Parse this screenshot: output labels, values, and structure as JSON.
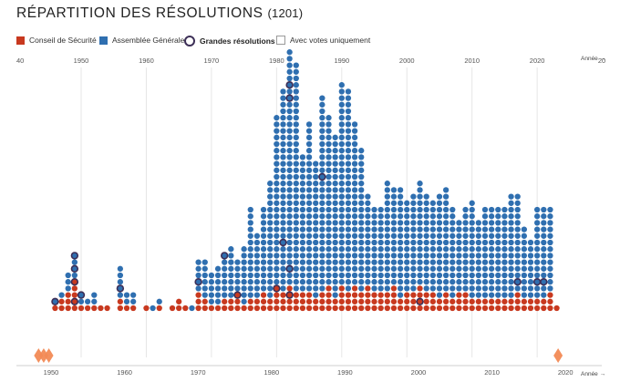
{
  "header": {
    "title": "RÉPARTITION DES RÉSOLUTIONS",
    "count": "(1201)"
  },
  "legend": {
    "security_council": "Conseil de Sécurité",
    "general_assembly": "Assemblée Générale",
    "major": "Grandes résolutions",
    "votes_only": "Avec votes uniquement"
  },
  "colors": {
    "security_council": "#c8391f",
    "general_assembly": "#2f6fb0",
    "major": "#3d2f57",
    "marker": "#f28a55"
  },
  "chart_data": {
    "type": "scatter",
    "title": "RÉPARTITION DES RÉSOLUTIONS (1201)",
    "xlabel": "Année",
    "xlabel_top": "Année",
    "xlim": [
      1940,
      2025
    ],
    "top_ticks": [
      "40",
      "1950",
      "1960",
      "1970",
      "1980",
      "1990",
      "2000",
      "2010",
      "2020",
      "20"
    ],
    "bottom_ticks": [
      "1950",
      "1960",
      "1970",
      "1980",
      "1990",
      "2000",
      "2010",
      "2020"
    ],
    "arrow": "→",
    "series": [
      {
        "name": "Conseil de Sécurité",
        "years": [
          1946,
          1947,
          1948,
          1949,
          1950,
          1951,
          1952,
          1953,
          1954,
          1955,
          1956,
          1957,
          1958,
          1959,
          1960,
          1961,
          1962,
          1963,
          1964,
          1965,
          1966,
          1967,
          1968,
          1969,
          1970,
          1971,
          1972,
          1973,
          1974,
          1975,
          1976,
          1977,
          1978,
          1979,
          1980,
          1981,
          1982,
          1983,
          1984,
          1985,
          1986,
          1987,
          1988,
          1989,
          1990,
          1991,
          1992,
          1993,
          1994,
          1995,
          1996,
          1997,
          1998,
          1999,
          2000,
          2001,
          2002,
          2003,
          2004,
          2005,
          2006,
          2007,
          2008,
          2009,
          2010,
          2011,
          2012,
          2013,
          2014,
          2015,
          2016,
          2017,
          2018,
          2019,
          2020,
          2021,
          2022,
          2023
        ],
        "values": [
          1,
          2,
          3,
          5,
          1,
          1,
          1,
          1,
          1,
          0,
          2,
          1,
          1,
          0,
          1,
          0,
          1,
          0,
          1,
          2,
          1,
          0,
          3,
          2,
          1,
          1,
          2,
          2,
          3,
          1,
          2,
          2,
          3,
          2,
          4,
          3,
          4,
          3,
          3,
          3,
          2,
          3,
          4,
          2,
          4,
          3,
          4,
          3,
          4,
          3,
          3,
          3,
          4,
          2,
          3,
          3,
          4,
          3,
          3,
          2,
          3,
          2,
          3,
          3,
          2,
          2,
          2,
          2,
          2,
          2,
          2,
          3,
          2,
          2,
          2,
          2,
          3,
          1
        ]
      },
      {
        "name": "Assemblée Générale",
        "years": [
          1946,
          1947,
          1948,
          1949,
          1950,
          1951,
          1952,
          1953,
          1954,
          1955,
          1956,
          1957,
          1958,
          1959,
          1960,
          1961,
          1962,
          1963,
          1964,
          1965,
          1966,
          1967,
          1968,
          1969,
          1970,
          1971,
          1972,
          1973,
          1974,
          1975,
          1976,
          1977,
          1978,
          1979,
          1980,
          1981,
          1982,
          1983,
          1984,
          1985,
          1986,
          1987,
          1988,
          1989,
          1990,
          1991,
          1992,
          1993,
          1994,
          1995,
          1996,
          1997,
          1998,
          1999,
          2000,
          2001,
          2002,
          2003,
          2004,
          2005,
          2006,
          2007,
          2008,
          2009,
          2010,
          2011,
          2012,
          2013,
          2014,
          2015,
          2016,
          2017,
          2018,
          2019,
          2020,
          2021,
          2022,
          2023
        ],
        "values": [
          0,
          1,
          3,
          3,
          1,
          1,
          2,
          0,
          0,
          0,
          5,
          2,
          2,
          0,
          0,
          1,
          1,
          0,
          0,
          0,
          0,
          1,
          5,
          6,
          5,
          6,
          7,
          8,
          5,
          9,
          14,
          10,
          13,
          18,
          26,
          31,
          36,
          35,
          21,
          26,
          21,
          30,
          26,
          25,
          31,
          31,
          25,
          22,
          14,
          13,
          13,
          17,
          15,
          17,
          14,
          15,
          16,
          15,
          14,
          16,
          16,
          14,
          11,
          13,
          15,
          12,
          14,
          14,
          14,
          14,
          16,
          15,
          11,
          9,
          14,
          14,
          13,
          0
        ]
      },
      {
        "name": "Grandes résolutions",
        "points": [
          [
            1946,
            1
          ],
          [
            1949,
            1
          ],
          [
            1949,
            4
          ],
          [
            1949,
            6
          ],
          [
            1949,
            8
          ],
          [
            1950,
            2
          ],
          [
            1956,
            3
          ],
          [
            1968,
            4
          ],
          [
            1972,
            8
          ],
          [
            1974,
            2
          ],
          [
            1980,
            3
          ],
          [
            1981,
            10
          ],
          [
            1982,
            2
          ],
          [
            1982,
            6
          ],
          [
            1982,
            32
          ],
          [
            1982,
            34
          ],
          [
            1987,
            20
          ],
          [
            2002,
            1
          ],
          [
            2017,
            4
          ],
          [
            2020,
            4
          ],
          [
            2021,
            4
          ]
        ]
      }
    ],
    "bottom_markers": [
      1948.3,
      1949.0,
      1949.7,
      2019.0
    ]
  }
}
